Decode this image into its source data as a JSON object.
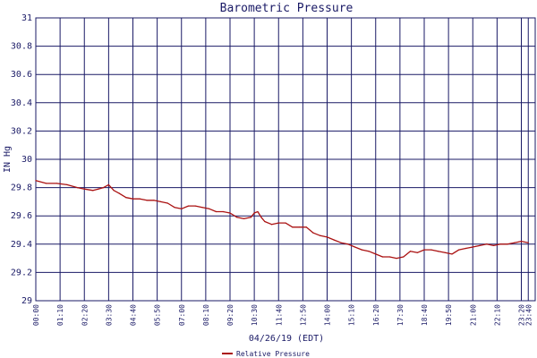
{
  "chart_data": {
    "type": "line",
    "title": "Barometric Pressure",
    "xlabel": "04/26/19 (EDT)",
    "ylabel": "IN Hg",
    "ylim": [
      29,
      31
    ],
    "yticks": [
      "29",
      "29.2",
      "29.4",
      "29.6",
      "29.8",
      "30",
      "30.2",
      "30.4",
      "30.6",
      "30.8",
      "31"
    ],
    "xticks": [
      "00:00",
      "01:10",
      "02:20",
      "03:30",
      "04:40",
      "05:50",
      "07:00",
      "08:10",
      "09:20",
      "10:30",
      "11:40",
      "12:50",
      "14:00",
      "15:10",
      "16:20",
      "17:30",
      "18:40",
      "19:50",
      "21:00",
      "22:10",
      "23:20",
      "23:40"
    ],
    "legend_position": "bottom-center",
    "grid": true,
    "colors": {
      "series": "#aa1111",
      "grid": "#1a1a66",
      "background": "#ffffff"
    },
    "series": [
      {
        "name": "Relative Pressure",
        "x": [
          "00:00",
          "00:30",
          "01:00",
          "01:30",
          "02:00",
          "02:20",
          "02:45",
          "03:00",
          "03:15",
          "03:30",
          "03:45",
          "04:00",
          "04:20",
          "04:40",
          "05:00",
          "05:20",
          "05:40",
          "06:00",
          "06:20",
          "06:40",
          "07:00",
          "07:20",
          "07:40",
          "08:00",
          "08:20",
          "08:40",
          "09:00",
          "09:20",
          "09:40",
          "10:00",
          "10:20",
          "10:30",
          "10:40",
          "10:50",
          "11:00",
          "11:20",
          "11:40",
          "12:00",
          "12:20",
          "12:40",
          "13:00",
          "13:20",
          "13:40",
          "14:00",
          "14:20",
          "14:40",
          "15:00",
          "15:20",
          "15:40",
          "16:00",
          "16:20",
          "16:40",
          "17:00",
          "17:20",
          "17:40",
          "18:00",
          "18:20",
          "18:40",
          "19:00",
          "19:20",
          "19:40",
          "20:00",
          "20:20",
          "20:40",
          "21:00",
          "21:20",
          "21:40",
          "22:00",
          "22:20",
          "22:40",
          "23:00",
          "23:20",
          "23:40"
        ],
        "values": [
          29.85,
          29.83,
          29.83,
          29.82,
          29.8,
          29.79,
          29.78,
          29.79,
          29.8,
          29.82,
          29.78,
          29.76,
          29.73,
          29.72,
          29.72,
          29.71,
          29.71,
          29.7,
          29.69,
          29.66,
          29.65,
          29.67,
          29.67,
          29.66,
          29.65,
          29.63,
          29.63,
          29.62,
          29.59,
          29.58,
          29.59,
          29.62,
          29.63,
          29.59,
          29.56,
          29.54,
          29.55,
          29.55,
          29.52,
          29.52,
          29.52,
          29.48,
          29.46,
          29.45,
          29.43,
          29.41,
          29.4,
          29.38,
          29.36,
          29.35,
          29.33,
          29.31,
          29.31,
          29.3,
          29.31,
          29.35,
          29.34,
          29.36,
          29.36,
          29.35,
          29.34,
          29.33,
          29.36,
          29.37,
          29.38,
          29.39,
          29.4,
          29.39,
          29.4,
          29.4,
          29.41,
          29.42,
          29.41
        ]
      }
    ]
  }
}
